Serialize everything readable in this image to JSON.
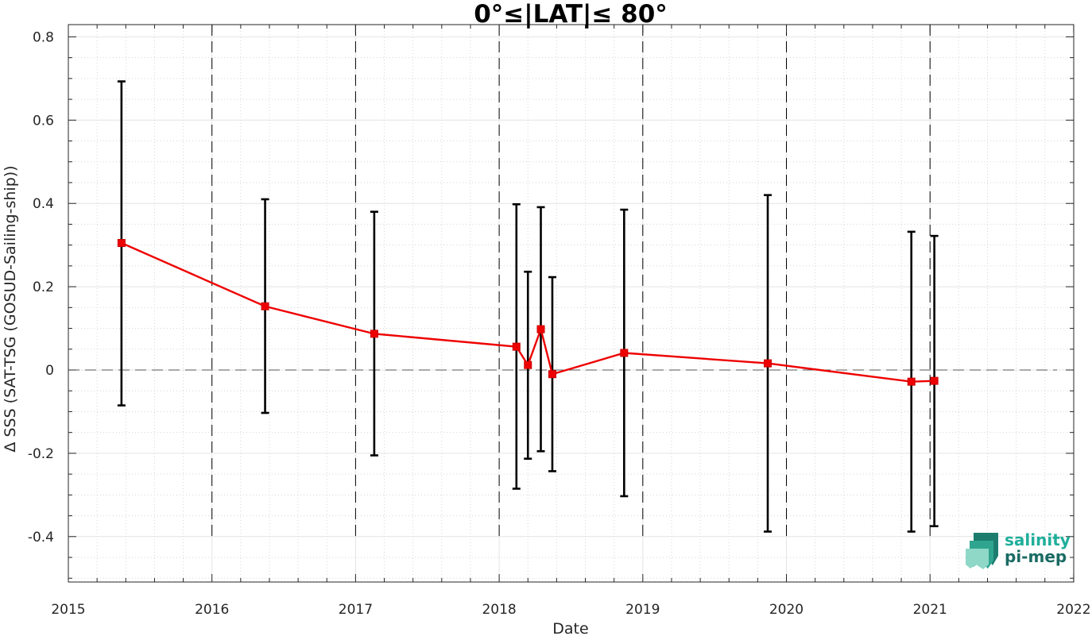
{
  "chart_data": {
    "type": "line",
    "title": "0°≤|LAT|≤ 80°",
    "xlabel": "Date",
    "ylabel": "Δ SSS (SAT-TSG (GOSUD-Sailing-ship))",
    "xlim": [
      2015,
      2022
    ],
    "ylim": [
      -0.51,
      0.82
    ],
    "x_ticks": [
      "2015",
      "2016",
      "2017",
      "2018",
      "2019",
      "2020",
      "2021",
      "2022"
    ],
    "y_ticks": [
      "0.8",
      "0.6",
      "0.4",
      "0.2",
      "0",
      "-0.2",
      "-0.4"
    ],
    "grid": true,
    "reference_line_y": 0,
    "year_separators": [
      2016,
      2017,
      2018,
      2019,
      2020,
      2021
    ],
    "series": [
      {
        "x": [
          2015.37,
          2016.37,
          2017.13,
          2018.12,
          2018.2,
          2018.29,
          2018.37,
          2018.87,
          2019.87,
          2020.87,
          2021.03
        ],
        "y": [
          0.305,
          0.153,
          0.087,
          0.056,
          0.012,
          0.098,
          -0.01,
          0.041,
          0.016,
          -0.028,
          -0.026
        ],
        "err_low": [
          -0.085,
          -0.103,
          -0.205,
          -0.285,
          -0.213,
          -0.195,
          -0.243,
          -0.303,
          -0.388,
          -0.388,
          -0.375
        ],
        "err_high": [
          0.693,
          0.41,
          0.38,
          0.398,
          0.236,
          0.391,
          0.223,
          0.385,
          0.42,
          0.332,
          0.322
        ],
        "color": "#ee0000"
      }
    ],
    "errorbar_color": "#000000"
  },
  "logo": {
    "line1": "salinity",
    "line2": "pi-mep",
    "color1": "#1fae9b",
    "color2": "#1a6b63"
  }
}
